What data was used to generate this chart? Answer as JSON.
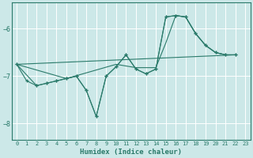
{
  "xlabel": "Humidex (Indice chaleur)",
  "bg_color": "#cce8e8",
  "grid_color": "#ffffff",
  "line_color": "#2a7a6a",
  "xlim": [
    -0.5,
    23.5
  ],
  "ylim": [
    -8.35,
    -5.45
  ],
  "yticks": [
    -8,
    -7,
    -6
  ],
  "xticks": [
    0,
    1,
    2,
    3,
    4,
    5,
    6,
    7,
    8,
    9,
    10,
    11,
    12,
    13,
    14,
    15,
    16,
    17,
    18,
    19,
    20,
    21,
    22,
    23
  ],
  "series": [
    {
      "x": [
        0,
        1,
        2,
        3,
        4,
        5,
        6,
        7,
        8,
        9,
        10,
        11,
        12,
        13,
        14,
        15,
        16,
        17,
        18,
        19,
        20,
        21,
        22
      ],
      "y": [
        -6.75,
        -7.1,
        -7.2,
        -7.15,
        -7.1,
        -7.05,
        -7.0,
        -7.3,
        -7.85,
        -7.0,
        -6.8,
        -6.55,
        -6.85,
        -6.95,
        -6.85,
        -5.75,
        -5.72,
        -5.75,
        -6.1,
        -6.35,
        -6.5,
        -6.55,
        -6.55
      ],
      "marker": true
    },
    {
      "x": [
        0,
        2,
        3,
        4,
        5,
        6,
        7,
        8,
        9,
        10,
        11,
        12,
        13,
        14,
        15,
        16,
        17,
        18,
        19,
        20,
        21,
        22
      ],
      "y": [
        -6.75,
        -7.2,
        -7.15,
        -7.1,
        -7.05,
        -7.0,
        -7.3,
        -7.85,
        -7.0,
        -6.8,
        -6.55,
        -6.85,
        -6.95,
        -6.85,
        -5.75,
        -5.72,
        -5.75,
        -6.1,
        -6.35,
        -6.5,
        -6.55,
        -6.55
      ],
      "marker": true
    },
    {
      "x": [
        0,
        5,
        10,
        12,
        14,
        15,
        16,
        17,
        18,
        19,
        20,
        21,
        22
      ],
      "y": [
        -6.75,
        -7.05,
        -6.75,
        -6.82,
        -6.82,
        -6.3,
        -5.72,
        -5.75,
        -6.1,
        -6.35,
        -6.5,
        -6.55,
        -6.55
      ],
      "marker": false
    },
    {
      "x": [
        0,
        22
      ],
      "y": [
        -6.75,
        -6.55
      ],
      "marker": false
    }
  ]
}
